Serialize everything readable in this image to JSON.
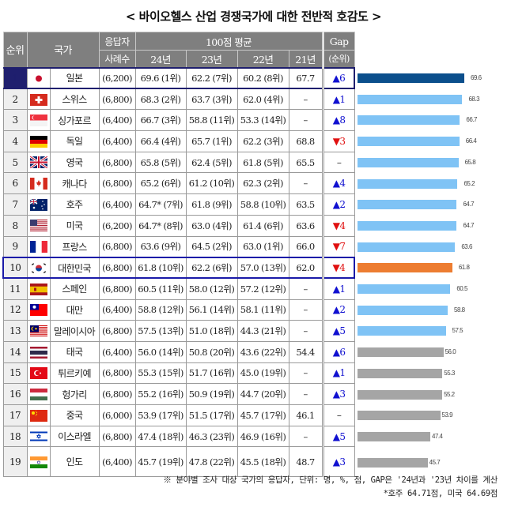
{
  "title": "< 바이오헬스 산업 경쟁국가에 대한 전반적 호감도 >",
  "table": {
    "headers": {
      "rank": "순위",
      "country": "국가",
      "respondents_line1": "응답자",
      "respondents_line2": "사례수",
      "avg_group": "100점 평균",
      "y24": "24년",
      "y23": "23년",
      "y22": "22년",
      "y21": "21년",
      "gap_line1": "Gap",
      "gap_line2": "(순위)"
    },
    "rows": [
      {
        "rank": "1",
        "flag": "japan",
        "country": "일본",
        "n": "(6,200)",
        "y24": "69.6 (1위)",
        "y23": "62.2 (7위)",
        "y22": "60.2 (8위)",
        "y21": "67.7",
        "gap": "▲6",
        "dir": "up"
      },
      {
        "rank": "2",
        "flag": "switzerland",
        "country": "스위스",
        "n": "(6,800)",
        "y24": "68.3 (2위)",
        "y23": "63.7 (3위)",
        "y22": "62.0 (4위)",
        "y21": "–",
        "gap": "▲1",
        "dir": "up"
      },
      {
        "rank": "3",
        "flag": "singapore",
        "country": "싱가포르",
        "n": "(6,400)",
        "y24": "66.7 (3위)",
        "y23": "58.8 (11위)",
        "y22": "53.3 (14위)",
        "y21": "–",
        "gap": "▲8",
        "dir": "up"
      },
      {
        "rank": "4",
        "flag": "germany",
        "country": "독일",
        "n": "(6,400)",
        "y24": "66.4 (4위)",
        "y23": "65.7 (1위)",
        "y22": "62.2 (3위)",
        "y21": "68.8",
        "gap": "▼3",
        "dir": "down"
      },
      {
        "rank": "5",
        "flag": "uk",
        "country": "영국",
        "n": "(6,800)",
        "y24": "65.8 (5위)",
        "y23": "62.4 (5위)",
        "y22": "61.8 (5위)",
        "y21": "65.5",
        "gap": "–",
        "dir": "none"
      },
      {
        "rank": "6",
        "flag": "canada",
        "country": "캐나다",
        "n": "(6,800)",
        "y24": "65.2 (6위)",
        "y23": "61.2 (10위)",
        "y22": "62.3 (2위)",
        "y21": "–",
        "gap": "▲4",
        "dir": "up"
      },
      {
        "rank": "7",
        "flag": "australia",
        "country": "호주",
        "n": "(6,400)",
        "y24": "64.7* (7위)",
        "y23": "61.8 (9위)",
        "y22": "58.8 (10위)",
        "y21": "63.5",
        "gap": "▲2",
        "dir": "up"
      },
      {
        "rank": "8",
        "flag": "usa",
        "country": "미국",
        "n": "(6,200)",
        "y24": "64.7* (8위)",
        "y23": "63.0 (4위)",
        "y22": "61.4 (6위)",
        "y21": "63.6",
        "gap": "▼4",
        "dir": "down"
      },
      {
        "rank": "9",
        "flag": "france",
        "country": "프랑스",
        "n": "(6,800)",
        "y24": "63.6 (9위)",
        "y23": "64.5 (2위)",
        "y22": "63.0 (1위)",
        "y21": "66.0",
        "gap": "▼7",
        "dir": "down"
      },
      {
        "rank": "10",
        "flag": "korea",
        "country": "대한민국",
        "n": "(6,800)",
        "y24": "61.8 (10위)",
        "y23": "62.2 (6위)",
        "y22": "57.0 (13위)",
        "y21": "62.0",
        "gap": "▼4",
        "dir": "down"
      },
      {
        "rank": "11",
        "flag": "spain",
        "country": "스페인",
        "n": "(6,800)",
        "y24": "60.5 (11위)",
        "y23": "58.0 (12위)",
        "y22": "57.2 (12위)",
        "y21": "–",
        "gap": "▲1",
        "dir": "up"
      },
      {
        "rank": "12",
        "flag": "taiwan",
        "country": "대만",
        "n": "(6,400)",
        "y24": "58.8 (12위)",
        "y23": "56.1 (14위)",
        "y22": "58.1 (11위)",
        "y21": "–",
        "gap": "▲2",
        "dir": "up"
      },
      {
        "rank": "13",
        "flag": "malaysia",
        "country": "말레이시아",
        "n": "(6,800)",
        "y24": "57.5 (13위)",
        "y23": "51.0 (18위)",
        "y22": "44.3 (21위)",
        "y21": "–",
        "gap": "▲5",
        "dir": "up"
      },
      {
        "rank": "14",
        "flag": "thailand",
        "country": "태국",
        "n": "(6,400)",
        "y24": "56.0 (14위)",
        "y23": "50.8 (20위)",
        "y22": "43.6 (22위)",
        "y21": "54.4",
        "gap": "▲6",
        "dir": "up"
      },
      {
        "rank": "15",
        "flag": "turkiye",
        "country": "튀르키예",
        "n": "(6,800)",
        "y24": "55.3 (15위)",
        "y23": "51.7 (16위)",
        "y22": "45.0 (19위)",
        "y21": "–",
        "gap": "▲1",
        "dir": "up"
      },
      {
        "rank": "16",
        "flag": "hungary",
        "country": "헝가리",
        "n": "(6,800)",
        "y24": "55.2 (16위)",
        "y23": "50.9 (19위)",
        "y22": "44.7 (20위)",
        "y21": "–",
        "gap": "▲3",
        "dir": "up"
      },
      {
        "rank": "17",
        "flag": "china",
        "country": "중국",
        "n": "(6,000)",
        "y24": "53.9 (17위)",
        "y23": "51.5 (17위)",
        "y22": "45.7 (17위)",
        "y21": "46.1",
        "gap": "–",
        "dir": "none"
      },
      {
        "rank": "18",
        "flag": "israel",
        "country": "이스라엘",
        "n": "(6,800)",
        "y24": "47.4 (18위)",
        "y23": "46.3 (23위)",
        "y22": "46.9 (16위)",
        "y21": "–",
        "gap": "▲5",
        "dir": "up"
      },
      {
        "rank": "19",
        "flag": "india",
        "country": "인도",
        "n": "(6,400)",
        "y24": "45.7 (19위)",
        "y23": "47.8 (22위)",
        "y22": "45.5 (18위)",
        "y21": "48.7",
        "gap": "▲3",
        "dir": "up"
      }
    ]
  },
  "colors": {
    "header_bg": "#7f7f7f",
    "rank1_bg": "#1f1f6e",
    "korea_outline": "#1a1aa8",
    "bar_top": "#0b4f8c",
    "bar_blue": "#7fc3f5",
    "bar_orange": "#ed7d31",
    "bar_gray": "#a5a5a5",
    "gap_up": "#1010d0",
    "gap_down": "#e01010"
  },
  "chart_data": {
    "type": "bar",
    "orientation": "horizontal",
    "title": "",
    "categories": [
      "일본",
      "스위스",
      "싱가포르",
      "독일",
      "영국",
      "캐나다",
      "호주",
      "미국",
      "프랑스",
      "대한민국",
      "스페인",
      "대만",
      "말레이시아",
      "태국",
      "튀르키예",
      "헝가리",
      "중국",
      "이스라엘",
      "인도"
    ],
    "values": [
      69.6,
      68.3,
      66.7,
      66.4,
      65.8,
      65.2,
      64.7,
      64.7,
      63.6,
      61.8,
      60.5,
      58.8,
      57.5,
      56.0,
      55.3,
      55.2,
      53.9,
      47.4,
      45.7
    ],
    "labels": [
      "69.6",
      "68.3",
      "66.7",
      "66.4",
      "65.8",
      "65.2",
      "64.7",
      "64.7",
      "63.6",
      "61.8",
      "60.5",
      "58.8",
      "57.5",
      "56.0",
      "55.3",
      "55.2",
      "53.9",
      "47.4",
      "45.7"
    ],
    "bar_colors": [
      "#0b4f8c",
      "#7fc3f5",
      "#7fc3f5",
      "#7fc3f5",
      "#7fc3f5",
      "#7fc3f5",
      "#7fc3f5",
      "#7fc3f5",
      "#7fc3f5",
      "#ed7d31",
      "#7fc3f5",
      "#7fc3f5",
      "#7fc3f5",
      "#a5a5a5",
      "#a5a5a5",
      "#a5a5a5",
      "#a5a5a5",
      "#a5a5a5",
      "#a5a5a5"
    ],
    "xlabel": "",
    "ylabel": "",
    "grid": false,
    "legend": "none"
  },
  "notes": {
    "line1": "※ 분야별 조사 대상 국가의 응답자, 단위: 명, %, 점, GAP은 '24년과 '23년 차이를 계산",
    "line2": "*호주 64.71점, 미국 64.69점"
  }
}
